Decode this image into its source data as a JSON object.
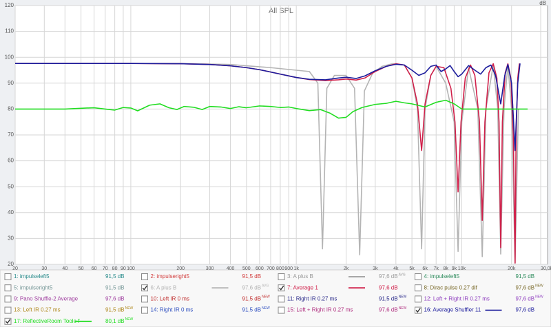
{
  "chart_data": {
    "type": "line",
    "title": "All SPL",
    "y_unit": "dB",
    "log_x": true,
    "grid": true,
    "xlim": [
      20,
      33000
    ],
    "ylim": [
      20,
      120
    ],
    "yticks": [
      20,
      30,
      40,
      50,
      60,
      70,
      80,
      90,
      100,
      110,
      120
    ],
    "xticks": [
      20,
      30,
      40,
      50,
      60,
      70,
      80,
      90,
      100,
      200,
      300,
      400,
      500,
      600,
      700,
      800,
      900,
      {
        "value": 1000,
        "label": "1k"
      },
      {
        "value": 2000,
        "label": "2k"
      },
      {
        "value": 3000,
        "label": "3k"
      },
      {
        "value": 4000,
        "label": "4k"
      },
      {
        "value": 5000,
        "label": "5k"
      },
      {
        "value": 6000,
        "label": "6k"
      },
      {
        "value": 7000,
        "label": "7k"
      },
      {
        "value": 8000,
        "label": "8k"
      },
      {
        "value": 9000,
        "label": "9k"
      },
      {
        "value": 10000,
        "label": "10k"
      },
      {
        "value": 20000,
        "label": "20k"
      },
      {
        "value": 30000,
        "label": "30,0k Hz"
      }
    ],
    "series": [
      {
        "name": "1: impulseleft5",
        "color": "#2a8c8c",
        "level": "91,5 dB",
        "checked": false,
        "swatch": false
      },
      {
        "name": "2: impulseright5",
        "color": "#d23c3c",
        "level": "91,5 dB",
        "checked": false,
        "swatch": false
      },
      {
        "name": "3: A plus B",
        "color": "#9a9a9a",
        "level": "97,6 dB",
        "tag": "AVG",
        "checked": false,
        "swatch": true
      },
      {
        "name": "4: impulseleft5",
        "color": "#2a8a5a",
        "level": "91,5 dB",
        "checked": false,
        "swatch": false
      },
      {
        "name": "5: impulseright5",
        "color": "#7a9a9a",
        "level": "91,5 dB",
        "checked": false,
        "swatch": false
      },
      {
        "name": "6: A plus B",
        "color": "#b4b4b4",
        "level": "97,6 dB",
        "tag": "AVG",
        "checked": true,
        "swatch": true,
        "x": [
          20,
          200,
          400,
          700,
          1000,
          1200,
          1350,
          1440,
          1530,
          1700,
          2000,
          2250,
          2416,
          2580,
          2900,
          3300,
          3800,
          4500,
          5000,
          5400,
          5720,
          6000,
          6500,
          7000,
          8000,
          9000,
          9500,
          10000,
          11000,
          12500,
          13300,
          14000,
          15500,
          16500,
          17200,
          18000,
          19000,
          20000,
          21000,
          22000
        ],
        "values": [
          97.6,
          97.6,
          97.2,
          96,
          95,
          94.5,
          90,
          26,
          88,
          93,
          93,
          88,
          23.7,
          87,
          94,
          96.5,
          97.5,
          97,
          92,
          80,
          26,
          80,
          93,
          96.5,
          90,
          75,
          25,
          75,
          96,
          80,
          23,
          80,
          97,
          80,
          24,
          80,
          97,
          80,
          20.5,
          80
        ]
      },
      {
        "name": "7: Average 1",
        "color": "#d0204a",
        "level": "97,6 dB",
        "checked": true,
        "swatch": true,
        "x": [
          20,
          100,
          200,
          300,
          400,
          500,
          600,
          700,
          800,
          1000,
          1200,
          1500,
          1800,
          2000,
          2300,
          2600,
          3000,
          3500,
          4000,
          4500,
          5000,
          5400,
          5720,
          6000,
          6500,
          7000,
          7800,
          8600,
          9100,
          9500,
          9900,
          10500,
          11300,
          12000,
          12800,
          13300,
          13800,
          14600,
          15500,
          16300,
          16800,
          17200,
          17600,
          18300,
          19000,
          19800,
          20500,
          21000,
          21300,
          21800,
          22300
        ],
        "values": [
          97.6,
          97.6,
          97.5,
          97.2,
          96.7,
          96,
          95.2,
          94.3,
          93.5,
          92.2,
          91.4,
          91,
          91.3,
          91.6,
          91.2,
          92,
          94.5,
          96.5,
          97.5,
          97,
          92,
          82,
          64,
          82,
          93,
          96.5,
          96,
          88,
          75,
          48,
          75,
          92,
          97,
          93,
          75,
          37,
          75,
          94,
          97.5,
          92,
          75,
          26.5,
          75,
          94,
          97.5,
          92,
          70,
          20.5,
          70,
          92,
          97.6
        ]
      },
      {
        "name": "8: Dirac pulse 0.27 dif",
        "color": "#7a6a2a",
        "level": "97,6 dB",
        "tag": "NEW",
        "checked": false,
        "swatch": false
      },
      {
        "name": "9: Pano Shuffle-2 Average",
        "color": "#a040a0",
        "level": "97,6 dB",
        "checked": false,
        "swatch": false
      },
      {
        "name": "10: Left IR 0 ms",
        "color": "#c03030",
        "level": "91,5 dB",
        "tag": "NEW",
        "checked": false,
        "swatch": false
      },
      {
        "name": "11: Right IR 0.27 ms",
        "color": "#2a2a8a",
        "level": "91,5 dB",
        "tag": "NEW",
        "checked": false,
        "swatch": false
      },
      {
        "name": "12: Left + Right IR 0.27 ms",
        "color": "#9040c0",
        "level": "97,6 dB",
        "tag": "NEW",
        "checked": false,
        "swatch": false
      },
      {
        "name": "13: Left IR 0.27 ms",
        "color": "#b08a20",
        "level": "91,5 dB",
        "tag": "NEW",
        "checked": false,
        "swatch": false
      },
      {
        "name": "14: Right IR 0 ms",
        "color": "#3050c0",
        "level": "91,5 dB",
        "tag": "NEW",
        "checked": false,
        "swatch": false
      },
      {
        "name": "15: Left + Right IR 0.27 ms",
        "color": "#b03080",
        "level": "97,6 dB",
        "tag": "NEW",
        "checked": false,
        "swatch": false
      },
      {
        "name": "16: Average Shuffler 11",
        "color": "#1c1c9c",
        "level": "97,6 dB",
        "checked": true,
        "swatch": true,
        "x": [
          20,
          100,
          200,
          300,
          400,
          500,
          600,
          700,
          800,
          1000,
          1200,
          1500,
          1800,
          2000,
          2300,
          2600,
          3000,
          3500,
          4000,
          4500,
          5000,
          5500,
          6000,
          6500,
          7000,
          7500,
          8000,
          8500,
          9000,
          9500,
          10000,
          11000,
          12000,
          13000,
          14000,
          15000,
          16000,
          17200,
          18200,
          19000,
          20000,
          21000,
          21800,
          22500
        ],
        "values": [
          97.6,
          97.6,
          97.5,
          97.2,
          96.7,
          96,
          95.2,
          94.3,
          93.5,
          92.2,
          91.5,
          91.3,
          92,
          92.3,
          91.8,
          92.8,
          94.8,
          96.5,
          97.3,
          97,
          95,
          93,
          94,
          96.5,
          97,
          94.5,
          95.5,
          96.8,
          94.5,
          92.5,
          93.5,
          96.8,
          95,
          93.5,
          96,
          97,
          93,
          82,
          93,
          97.2,
          90,
          64,
          90,
          97.6
        ]
      },
      {
        "name": "17: ReflectiveRoom Toole f",
        "color": "#22dd22",
        "level": "80,1 dB",
        "tag": "NEW",
        "checked": true,
        "swatch": true,
        "x": [
          20,
          40,
          50,
          60,
          70,
          80,
          90,
          100,
          110,
          130,
          150,
          170,
          190,
          210,
          240,
          270,
          300,
          350,
          400,
          450,
          500,
          600,
          700,
          800,
          900,
          1000,
          1200,
          1400,
          1600,
          1800,
          2000,
          2200,
          2500,
          3000,
          3500,
          4000,
          4500,
          5000,
          6000,
          7000,
          8000,
          9000,
          10000,
          12000,
          15000,
          20000,
          25000
        ],
        "values": [
          80,
          80,
          80.3,
          80.5,
          80,
          79.6,
          80.6,
          80.4,
          79.3,
          81.5,
          82,
          80.5,
          79.8,
          81,
          80.7,
          79.8,
          81,
          80.8,
          80.2,
          80.9,
          80.5,
          81.2,
          81,
          80.6,
          80.8,
          80.2,
          79.4,
          79.8,
          78.4,
          76.5,
          76.8,
          79,
          80.6,
          81.8,
          82.2,
          83,
          82.4,
          82,
          80.8,
          82.6,
          83.4,
          82,
          80,
          80,
          80,
          80,
          80
        ]
      }
    ]
  }
}
